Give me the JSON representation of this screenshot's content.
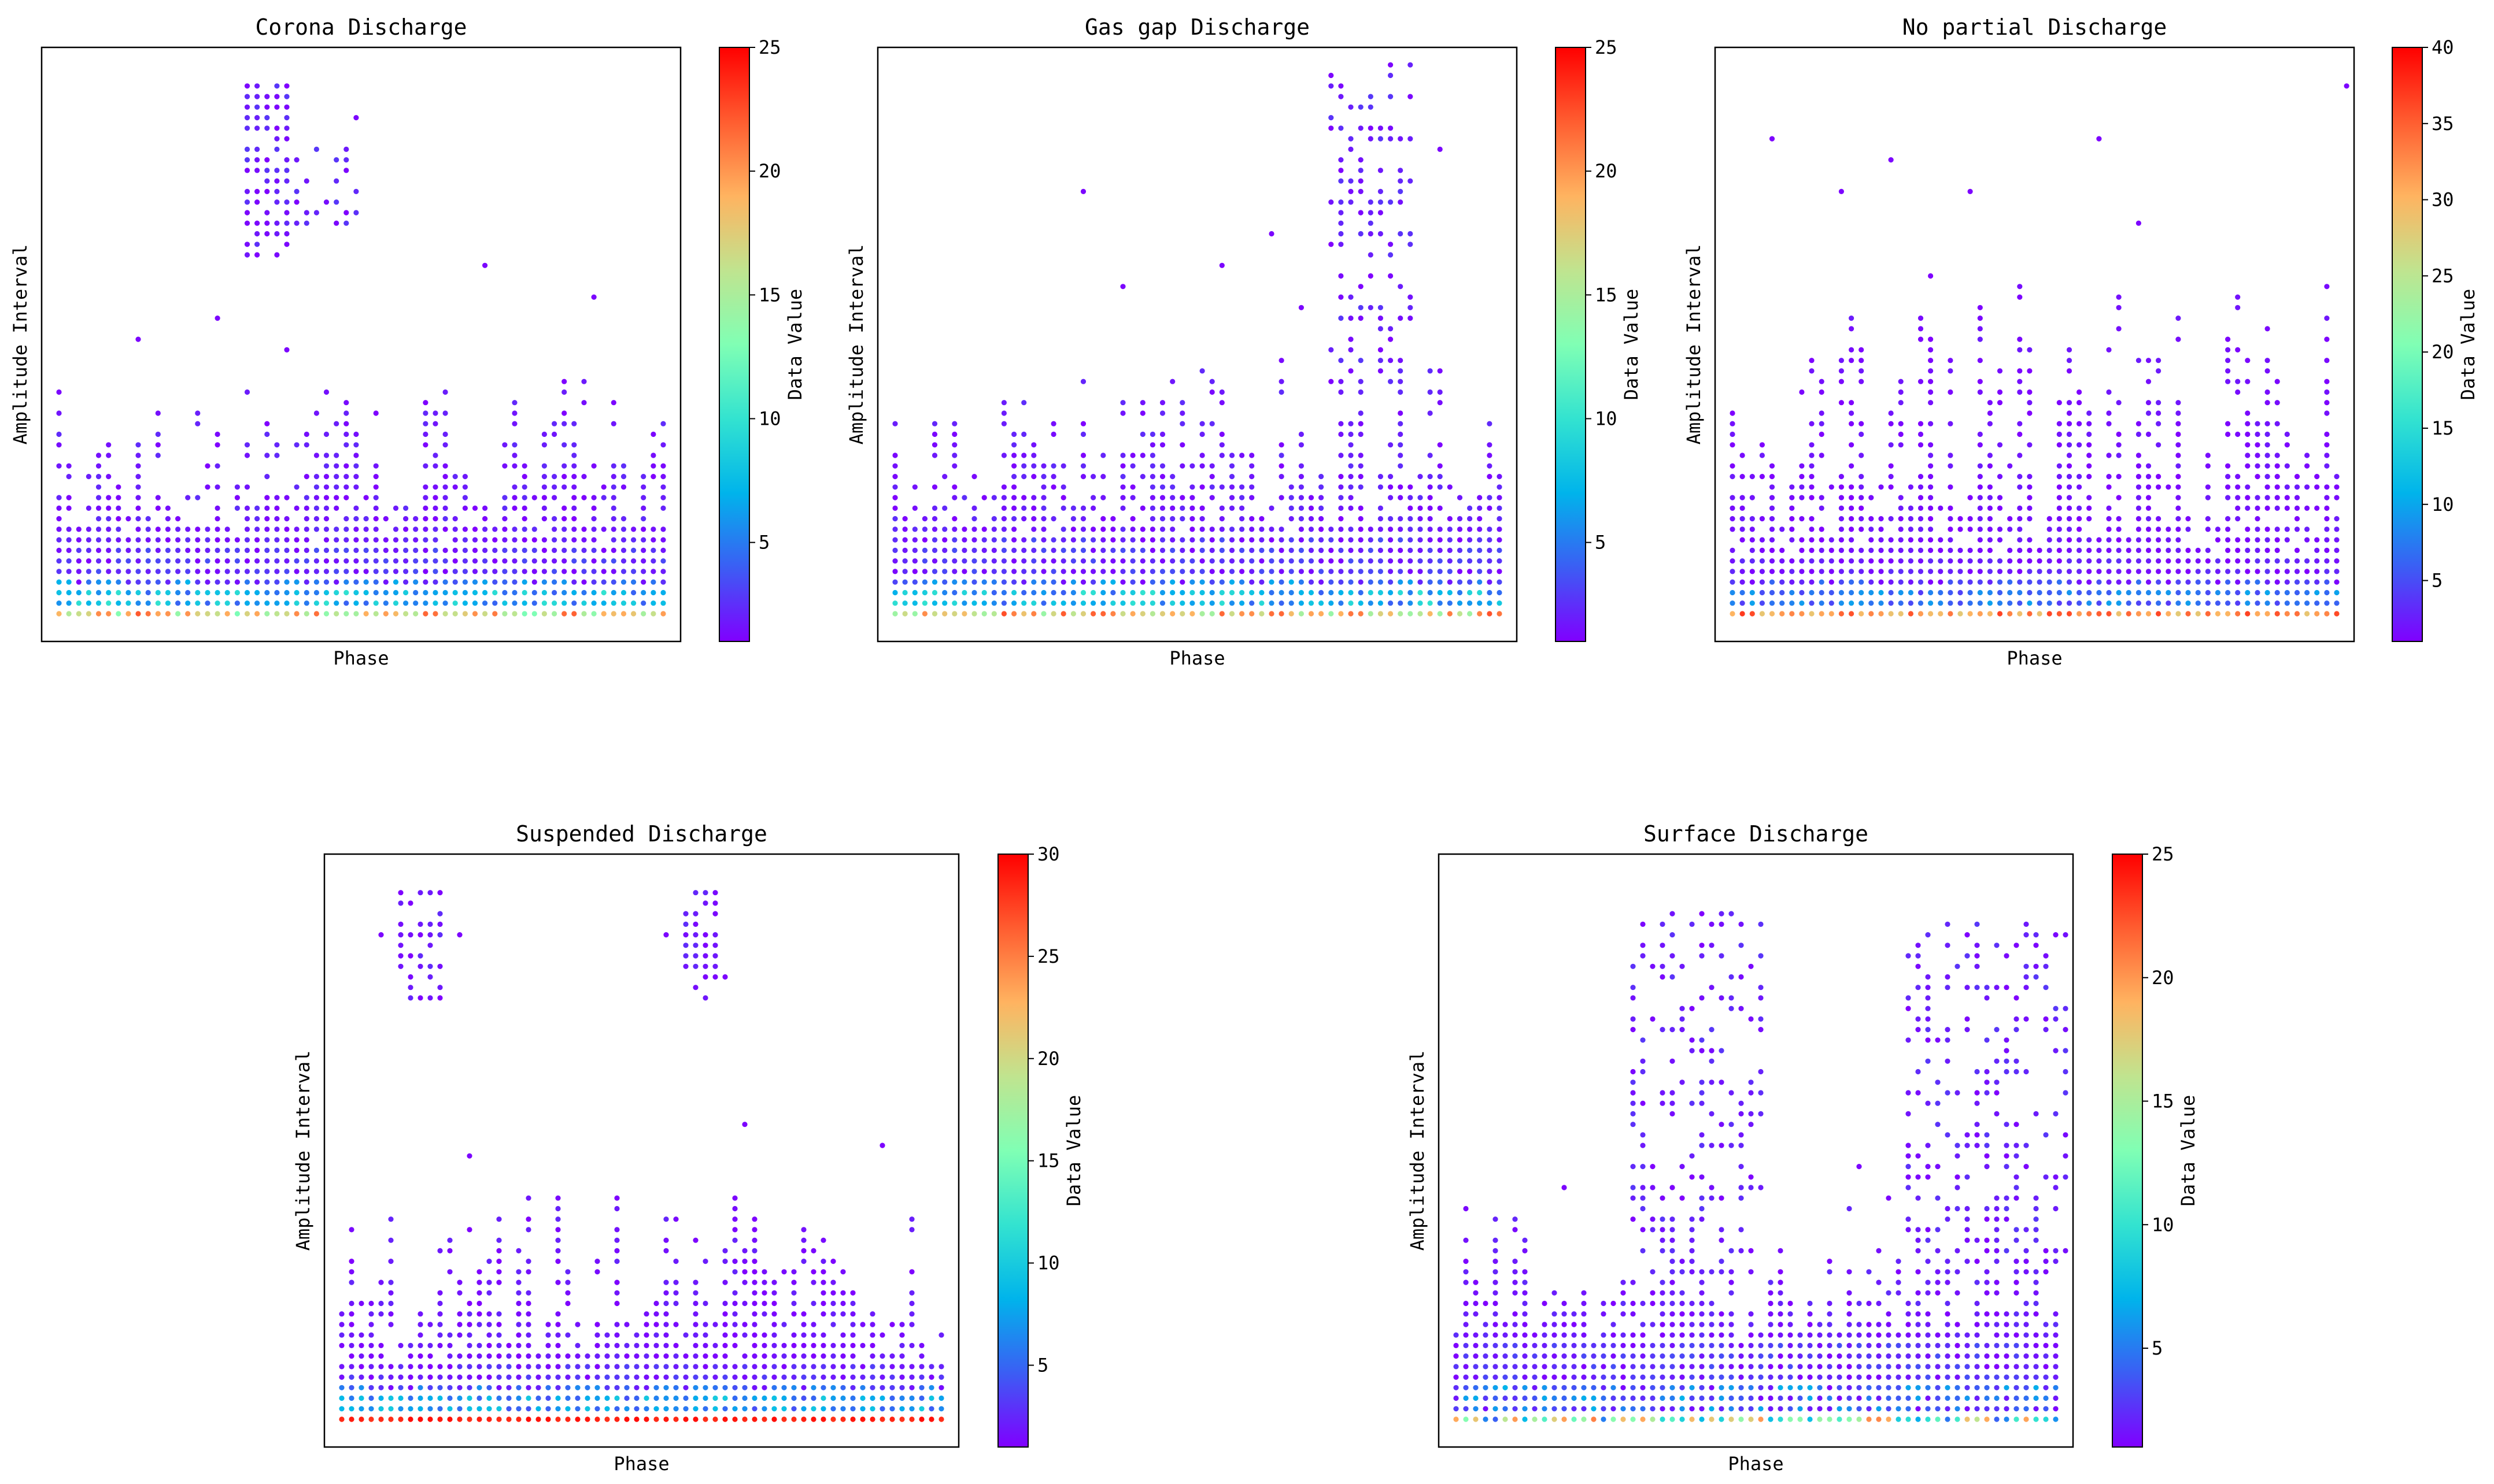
{
  "figure": {
    "colormap": "rainbow",
    "colormap_stops": [
      "#8000ff",
      "#3b5ef4",
      "#00b4eb",
      "#33e3d0",
      "#80ffb4",
      "#c0e48f",
      "#ffb360",
      "#ff5d30",
      "#ff0000"
    ]
  },
  "chart_data": [
    {
      "type": "scatter",
      "title": "Corona Discharge",
      "xlabel": "Phase",
      "ylabel": "Amplitude Interval",
      "colorbar_label": "Data Value",
      "colorbar_range": [
        1,
        25
      ],
      "colorbar_ticks": [
        5,
        10,
        15,
        20,
        25
      ],
      "n_phase_bins": 62,
      "n_amplitude_bins": 54,
      "pattern": {
        "base_dense_rows": 7,
        "base_top_value": 12,
        "bulk_top_mean": 16,
        "bulk_top_jitter": 7,
        "clusters": [
          {
            "phase_bins": [
              19,
              23
            ],
            "amplitude_bins": [
              34,
              50
            ],
            "density": 0.8
          },
          {
            "phase_bins": [
              24,
              30
            ],
            "amplitude_bins": [
              37,
              44
            ],
            "density": 0.35
          }
        ],
        "outliers": [
          [
            30,
            47
          ],
          [
            43,
            33
          ],
          [
            54,
            30
          ],
          [
            8,
            26
          ],
          [
            16,
            28
          ],
          [
            23,
            25
          ]
        ]
      }
    },
    {
      "type": "scatter",
      "title": "Gas gap Discharge",
      "xlabel": "Phase",
      "ylabel": "Amplitude Interval",
      "colorbar_label": "Data Value",
      "colorbar_range": [
        1,
        25
      ],
      "colorbar_ticks": [
        5,
        10,
        15,
        20,
        25
      ],
      "n_phase_bins": 62,
      "n_amplitude_bins": 54,
      "pattern": {
        "base_dense_rows": 8,
        "base_top_value": 14,
        "bulk_top_mean": 17,
        "bulk_top_jitter": 8,
        "clusters": [
          {
            "phase_bins": [
              44,
              52
            ],
            "amplitude_bins": [
              22,
              52
            ],
            "density": 0.4
          }
        ],
        "outliers": [
          [
            19,
            40
          ],
          [
            23,
            31
          ],
          [
            33,
            33
          ],
          [
            38,
            36
          ],
          [
            41,
            29
          ],
          [
            55,
            44
          ]
        ]
      }
    },
    {
      "type": "scatter",
      "title": "No partial Discharge",
      "xlabel": "Phase",
      "ylabel": "Amplitude Interval",
      "colorbar_label": "Data Value",
      "colorbar_range": [
        1,
        40
      ],
      "colorbar_ticks": [
        5,
        10,
        15,
        20,
        25,
        30,
        35,
        40
      ],
      "n_phase_bins": 62,
      "n_amplitude_bins": 54,
      "pattern": {
        "base_dense_rows": 6,
        "base_top_value": 28,
        "bulk_top_mean": 20,
        "bulk_top_jitter": 12,
        "clusters": [],
        "outliers": [
          [
            4,
            45
          ],
          [
            11,
            40
          ],
          [
            16,
            43
          ],
          [
            24,
            40
          ],
          [
            37,
            45
          ],
          [
            41,
            37
          ],
          [
            62,
            50
          ]
        ]
      }
    },
    {
      "type": "scatter",
      "title": "Suspended Discharge",
      "xlabel": "Phase",
      "ylabel": "Amplitude Interval",
      "colorbar_label": "Data Value",
      "colorbar_range": [
        1,
        30
      ],
      "colorbar_ticks": [
        5,
        10,
        15,
        20,
        25,
        30
      ],
      "n_phase_bins": 62,
      "n_amplitude_bins": 54,
      "pattern": {
        "base_dense_rows": 6,
        "base_top_value": 28,
        "bulk_top_mean": 14,
        "bulk_top_jitter": 8,
        "clusters": [
          {
            "phase_bins": [
              6,
              10
            ],
            "amplitude_bins": [
              40,
              50
            ],
            "density": 0.6
          },
          {
            "phase_bins": [
              35,
              38
            ],
            "amplitude_bins": [
              40,
              50
            ],
            "density": 0.7
          }
        ],
        "outliers": [
          [
            4,
            46
          ],
          [
            12,
            46
          ],
          [
            33,
            46
          ],
          [
            39,
            42
          ],
          [
            41,
            28
          ],
          [
            13,
            25
          ],
          [
            55,
            26
          ]
        ]
      }
    },
    {
      "type": "scatter",
      "title": "Surface Discharge",
      "xlabel": "Phase",
      "ylabel": "Amplitude Interval",
      "colorbar_label": "Data Value",
      "colorbar_range": [
        1,
        25
      ],
      "colorbar_ticks": [
        5,
        10,
        15,
        20,
        25
      ],
      "n_phase_bins": 62,
      "n_amplitude_bins": 54,
      "pattern": {
        "base_dense_rows": 8,
        "base_top_value": 4,
        "bulk_top_mean": 14,
        "bulk_top_jitter": 6,
        "clusters": [
          {
            "phase_bins": [
              18,
              31
            ],
            "amplitude_bins": [
              14,
              48
            ],
            "density": 0.3
          },
          {
            "phase_bins": [
              46,
              62
            ],
            "amplitude_bins": [
              14,
              47
            ],
            "density": 0.35
          }
        ],
        "outliers": [
          [
            41,
            24
          ],
          [
            11,
            22
          ],
          [
            44,
            21
          ]
        ]
      }
    }
  ]
}
